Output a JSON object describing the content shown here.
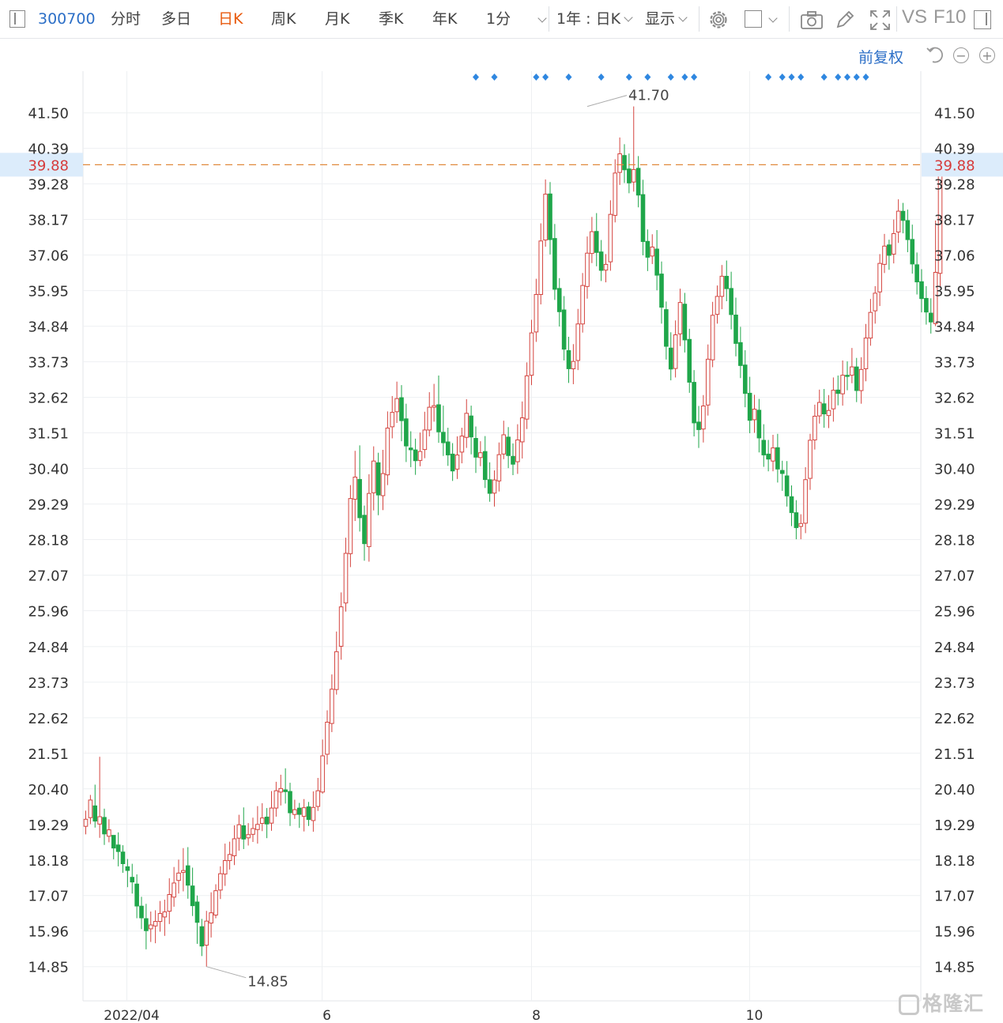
{
  "toolbar": {
    "stock_code": "300700",
    "tabs": [
      "分时",
      "多日",
      "日K",
      "周K",
      "月K",
      "季K",
      "年K",
      "1分"
    ],
    "active_tab": "日K",
    "range_label": "1年 : 日K",
    "display_label": "显示",
    "vs_label": "VS",
    "f10_label": "F10",
    "icons": [
      "sidebar-toggle-icon",
      "minute-dropdown-icon",
      "gear-icon",
      "square-icon",
      "camera-icon",
      "pencil-icon",
      "fullscreen-icon",
      "panel-icon"
    ]
  },
  "controls": {
    "adjust_label": "前复权",
    "icons": [
      "undo-icon",
      "zoom-out-icon",
      "zoom-in-icon"
    ]
  },
  "watermark": {
    "text": "格隆汇"
  },
  "colors": {
    "up": "#d4443f",
    "down": "#1fa64a",
    "price_line": "#e08a3c",
    "marker": "#2f87e0",
    "accent": "#e8590c"
  },
  "chart_data": {
    "type": "candlestick",
    "title": "",
    "xlabel": "",
    "ylabel": "",
    "ylim": [
      13.96,
      42.59
    ],
    "y_ticks": [
      "41.50",
      "40.39",
      "39.28",
      "38.17",
      "37.06",
      "35.95",
      "34.84",
      "33.73",
      "32.62",
      "31.51",
      "30.40",
      "29.29",
      "28.18",
      "27.07",
      "25.96",
      "24.84",
      "23.73",
      "22.62",
      "21.51",
      "20.40",
      "19.29",
      "18.18",
      "17.07",
      "15.96",
      "14.85"
    ],
    "x_ticks": [
      {
        "label": "2022/04",
        "index": 9
      },
      {
        "label": "6",
        "index": 51
      },
      {
        "label": "8",
        "index": 96
      },
      {
        "label": "10",
        "index": 143
      }
    ],
    "current_price": "39.88",
    "annotations": [
      {
        "text": "41.70",
        "type": "max",
        "index": 108,
        "value": 41.7
      },
      {
        "text": "14.85",
        "type": "min",
        "index": 26,
        "value": 14.85
      }
    ],
    "event_markers": [
      84,
      88,
      97,
      99,
      104,
      111,
      117,
      121,
      126,
      129,
      131,
      147,
      150,
      152,
      154,
      159,
      162,
      164,
      166,
      168
    ],
    "grid": true,
    "candles": [
      [
        19.23,
        19.45,
        18.98,
        19.72
      ],
      [
        19.5,
        20.05,
        19.3,
        20.21
      ],
      [
        19.88,
        19.38,
        19.19,
        20.53
      ],
      [
        19.3,
        19.53,
        18.87,
        21.4
      ],
      [
        19.52,
        18.98,
        18.65,
        19.78
      ],
      [
        18.92,
        19.12,
        18.73,
        19.45
      ],
      [
        18.96,
        18.54,
        18.2,
        18.85
      ],
      [
        18.66,
        18.43,
        17.98,
        19.04
      ],
      [
        18.44,
        18.05,
        17.78,
        18.64
      ],
      [
        17.98,
        17.84,
        17.33,
        18.21
      ],
      [
        17.65,
        17.48,
        17.13,
        18.06
      ],
      [
        17.44,
        16.73,
        16.36,
        17.73
      ],
      [
        16.75,
        16.36,
        16.02,
        17.03
      ],
      [
        16.36,
        15.96,
        15.39,
        16.81
      ],
      [
        16.03,
        16.15,
        15.62,
        16.57
      ],
      [
        16.12,
        16.26,
        15.58,
        16.61
      ],
      [
        16.26,
        16.51,
        15.94,
        16.9
      ],
      [
        16.4,
        16.56,
        15.81,
        16.94
      ],
      [
        16.58,
        17.1,
        16.18,
        17.61
      ],
      [
        17.02,
        17.46,
        16.72,
        17.96
      ],
      [
        17.54,
        17.77,
        17.13,
        18.19
      ],
      [
        17.79,
        17.85,
        17.2,
        18.55
      ],
      [
        18.01,
        17.38,
        16.97,
        18.58
      ],
      [
        17.38,
        16.74,
        16.43,
        17.94
      ],
      [
        16.88,
        16.22,
        15.56,
        17.07
      ],
      [
        16.11,
        15.48,
        15.18,
        16.34
      ],
      [
        15.52,
        16.27,
        14.85,
        16.59
      ],
      [
        16.21,
        16.53,
        15.76,
        17.17
      ],
      [
        16.46,
        17.22,
        16.36,
        17.42
      ],
      [
        17.24,
        17.75,
        16.96,
        17.98
      ],
      [
        17.74,
        18.16,
        17.37,
        18.69
      ],
      [
        18.16,
        18.35,
        17.88,
        18.75
      ],
      [
        18.31,
        18.84,
        18.02,
        19.26
      ],
      [
        18.86,
        19.28,
        18.47,
        19.59
      ],
      [
        19.26,
        18.82,
        18.52,
        19.82
      ],
      [
        18.87,
        18.97,
        18.63,
        19.33
      ],
      [
        18.98,
        19.16,
        18.74,
        19.5
      ],
      [
        19.13,
        19.29,
        18.69,
        19.86
      ],
      [
        19.32,
        19.49,
        19.08,
        19.95
      ],
      [
        19.53,
        19.29,
        18.86,
        19.8
      ],
      [
        19.33,
        19.8,
        19.09,
        20.33
      ],
      [
        19.8,
        20.34,
        19.53,
        20.62
      ],
      [
        20.3,
        20.41,
        19.88,
        20.84
      ],
      [
        20.38,
        20.3,
        19.94,
        21.04
      ],
      [
        20.33,
        19.64,
        19.24,
        20.59
      ],
      [
        19.6,
        19.75,
        19.46,
        20.06
      ],
      [
        19.81,
        19.59,
        19.18,
        19.96
      ],
      [
        19.54,
        19.81,
        19.07,
        20.08
      ],
      [
        19.85,
        19.43,
        19.24,
        19.99
      ],
      [
        19.41,
        19.82,
        19.06,
        20.32
      ],
      [
        19.85,
        20.34,
        19.71,
        20.74
      ],
      [
        20.3,
        21.43,
        20.25,
        21.94
      ],
      [
        21.48,
        22.48,
        21.16,
        22.85
      ],
      [
        22.44,
        23.51,
        22.17,
        23.97
      ],
      [
        23.5,
        24.68,
        23.34,
        25.31
      ],
      [
        24.85,
        26.08,
        24.43,
        26.53
      ],
      [
        26.2,
        27.75,
        25.93,
        28.24
      ],
      [
        27.74,
        29.46,
        27.32,
        29.88
      ],
      [
        29.44,
        30.13,
        28.76,
        30.95
      ],
      [
        30.07,
        28.85,
        28.43,
        31.12
      ],
      [
        28.95,
        28.04,
        27.52,
        29.24
      ],
      [
        27.96,
        29.62,
        27.49,
        30.22
      ],
      [
        29.64,
        30.63,
        29.09,
        31.09
      ],
      [
        30.59,
        29.56,
        28.94,
        30.89
      ],
      [
        29.55,
        30.24,
        29.1,
        30.98
      ],
      [
        30.2,
        31.66,
        29.88,
        32.18
      ],
      [
        31.7,
        32.15,
        31.34,
        32.66
      ],
      [
        32.17,
        32.58,
        31.82,
        33.11
      ],
      [
        32.62,
        31.88,
        31.25,
        33.0
      ],
      [
        31.96,
        31.09,
        30.6,
        32.42
      ],
      [
        31.05,
        30.97,
        30.44,
        31.56
      ],
      [
        30.99,
        30.63,
        30.2,
        31.33
      ],
      [
        30.65,
        30.93,
        30.47,
        31.52
      ],
      [
        30.99,
        31.6,
        30.72,
        32.17
      ],
      [
        31.6,
        32.31,
        31.4,
        32.78
      ],
      [
        32.31,
        32.36,
        31.86,
        33.04
      ],
      [
        32.4,
        31.53,
        31.2,
        33.3
      ],
      [
        31.54,
        31.19,
        30.79,
        32.36
      ],
      [
        31.24,
        30.81,
        30.48,
        31.67
      ],
      [
        30.86,
        30.31,
        30.01,
        31.19
      ],
      [
        30.38,
        30.82,
        30.07,
        31.4
      ],
      [
        30.91,
        31.41,
        30.56,
        31.67
      ],
      [
        31.37,
        32.12,
        31.04,
        32.56
      ],
      [
        32.05,
        31.37,
        30.84,
        32.36
      ],
      [
        31.35,
        30.74,
        30.26,
        31.71
      ],
      [
        30.74,
        30.89,
        30.47,
        31.25
      ],
      [
        30.94,
        30.04,
        29.79,
        31.41
      ],
      [
        30.06,
        29.61,
        29.36,
        30.59
      ],
      [
        29.63,
        30.04,
        29.21,
        30.34
      ],
      [
        30.01,
        30.83,
        29.68,
        31.21
      ],
      [
        30.85,
        31.45,
        30.69,
        31.89
      ],
      [
        31.39,
        30.79,
        30.41,
        31.69
      ],
      [
        30.79,
        30.52,
        30.19,
        31.18
      ],
      [
        30.61,
        31.29,
        30.23,
        31.78
      ],
      [
        31.23,
        31.98,
        30.71,
        32.49
      ],
      [
        31.94,
        33.29,
        31.63,
        33.71
      ],
      [
        33.31,
        34.63,
        33.0,
        35.04
      ],
      [
        34.66,
        35.83,
        34.35,
        36.32
      ],
      [
        35.83,
        37.5,
        35.52,
        38.05
      ],
      [
        37.53,
        38.96,
        37.32,
        39.42
      ],
      [
        38.98,
        37.53,
        37.08,
        39.34
      ],
      [
        37.59,
        35.98,
        35.66,
        38.03
      ],
      [
        36.03,
        35.28,
        34.83,
        36.34
      ],
      [
        35.36,
        34.11,
        33.77,
        35.78
      ],
      [
        34.09,
        33.5,
        33.07,
        34.51
      ],
      [
        33.51,
        33.74,
        33.03,
        34.28
      ],
      [
        33.77,
        34.91,
        33.47,
        35.38
      ],
      [
        34.91,
        36.11,
        34.64,
        36.5
      ],
      [
        36.08,
        37.12,
        35.7,
        37.64
      ],
      [
        37.11,
        37.79,
        36.81,
        38.25
      ],
      [
        37.81,
        37.13,
        36.71,
        38.37
      ],
      [
        37.17,
        36.57,
        36.25,
        37.53
      ],
      [
        36.59,
        36.77,
        36.21,
        37.09
      ],
      [
        36.85,
        38.33,
        36.57,
        38.77
      ],
      [
        38.3,
        39.62,
        38.08,
        40.05
      ],
      [
        39.64,
        40.22,
        39.25,
        40.73
      ],
      [
        40.18,
        39.71,
        39.31,
        40.52
      ],
      [
        39.76,
        39.3,
        38.99,
        40.23
      ],
      [
        39.34,
        39.73,
        39.04,
        41.7
      ],
      [
        39.78,
        38.92,
        38.55,
        40.15
      ],
      [
        38.96,
        37.47,
        37.05,
        39.41
      ],
      [
        37.5,
        36.98,
        36.56,
        37.86
      ],
      [
        37.03,
        37.31,
        36.78,
        37.71
      ],
      [
        37.26,
        36.42,
        35.96,
        37.84
      ],
      [
        36.48,
        35.42,
        34.92,
        36.86
      ],
      [
        35.37,
        34.2,
        33.8,
        35.61
      ],
      [
        34.17,
        33.49,
        33.15,
        34.65
      ],
      [
        33.52,
        34.57,
        33.24,
        35.02
      ],
      [
        34.6,
        35.58,
        34.22,
        36.01
      ],
      [
        35.54,
        34.4,
        34.02,
        35.88
      ],
      [
        34.44,
        33.08,
        32.76,
        34.76
      ],
      [
        33.1,
        31.81,
        31.4,
        33.47
      ],
      [
        31.86,
        31.6,
        31.04,
        32.35
      ],
      [
        31.63,
        32.35,
        31.21,
        32.69
      ],
      [
        32.38,
        33.81,
        32.05,
        34.27
      ],
      [
        33.79,
        35.18,
        33.56,
        35.6
      ],
      [
        35.21,
        35.77,
        34.92,
        36.11
      ],
      [
        35.77,
        36.4,
        35.37,
        36.75
      ],
      [
        36.41,
        36.0,
        35.62,
        36.89
      ],
      [
        36.03,
        35.19,
        34.74,
        36.54
      ],
      [
        35.2,
        34.29,
        33.9,
        35.73
      ],
      [
        34.34,
        33.6,
        33.22,
        34.82
      ],
      [
        33.64,
        32.73,
        32.31,
        34.09
      ],
      [
        32.76,
        31.89,
        31.5,
        33.26
      ],
      [
        31.92,
        32.25,
        31.51,
        32.7
      ],
      [
        32.23,
        31.34,
        30.9,
        32.57
      ],
      [
        31.29,
        30.81,
        30.45,
        31.78
      ],
      [
        30.86,
        30.68,
        30.31,
        31.29
      ],
      [
        30.63,
        31.04,
        30.31,
        31.45
      ],
      [
        31.06,
        30.37,
        29.96,
        31.48
      ],
      [
        30.35,
        30.23,
        29.7,
        30.64
      ],
      [
        30.18,
        29.53,
        29.21,
        30.63
      ],
      [
        29.53,
        29.01,
        28.6,
        29.87
      ],
      [
        29.03,
        28.54,
        28.19,
        29.41
      ],
      [
        28.59,
        28.68,
        28.19,
        28.97
      ],
      [
        28.69,
        30.05,
        28.38,
        30.44
      ],
      [
        30.09,
        31.28,
        29.73,
        31.48
      ],
      [
        31.29,
        32.03,
        30.99,
        32.39
      ],
      [
        32.04,
        32.46,
        31.8,
        32.86
      ],
      [
        32.43,
        32.09,
        31.67,
        32.88
      ],
      [
        32.05,
        32.21,
        31.66,
        32.69
      ],
      [
        32.26,
        32.84,
        31.86,
        33.24
      ],
      [
        32.86,
        32.73,
        32.37,
        33.3
      ],
      [
        32.73,
        33.31,
        32.36,
        33.77
      ],
      [
        33.32,
        33.26,
        32.84,
        33.74
      ],
      [
        33.31,
        33.57,
        33.06,
        34.16
      ],
      [
        33.58,
        32.82,
        32.47,
        33.85
      ],
      [
        32.83,
        33.49,
        32.42,
        33.87
      ],
      [
        33.51,
        34.47,
        33.12,
        34.91
      ],
      [
        34.47,
        35.27,
        34.23,
        35.69
      ],
      [
        35.32,
        35.87,
        34.92,
        36.09
      ],
      [
        35.91,
        36.8,
        35.47,
        37.09
      ],
      [
        36.77,
        37.34,
        36.5,
        37.72
      ],
      [
        37.39,
        37.04,
        36.6,
        37.54
      ],
      [
        37.09,
        37.73,
        36.8,
        38.17
      ],
      [
        37.78,
        38.43,
        37.44,
        38.8
      ],
      [
        38.44,
        38.13,
        37.74,
        38.69
      ],
      [
        38.15,
        37.53,
        37.15,
        38.48
      ],
      [
        37.56,
        36.77,
        36.48,
        38.01
      ],
      [
        36.77,
        36.21,
        35.83,
        37.14
      ],
      [
        36.24,
        35.69,
        35.27,
        36.62
      ],
      [
        35.72,
        35.27,
        34.89,
        36.09
      ],
      [
        35.26,
        34.96,
        34.61,
        35.71
      ],
      [
        34.92,
        36.52,
        34.84,
        38.14
      ],
      [
        36.49,
        39.88,
        36.07,
        40.05
      ]
    ]
  }
}
